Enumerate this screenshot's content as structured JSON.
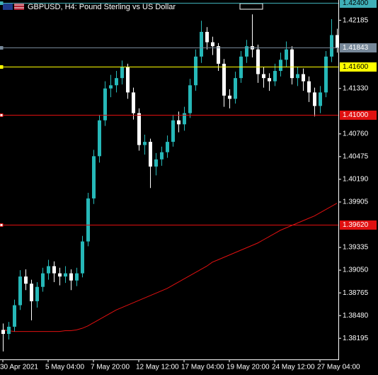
{
  "chart_data": {
    "type": "candlestick",
    "title": "GBPUSD, H4:  Pound Sterling vs US Dollar",
    "categories": [
      "30 Apr 2021",
      null,
      null,
      null,
      null,
      null,
      null,
      null,
      "5 May 04:00",
      null,
      null,
      null,
      null,
      null,
      null,
      null,
      "7 May 20:00",
      null,
      null,
      null,
      null,
      null,
      null,
      null,
      "12 May 12:00",
      null,
      null,
      null,
      null,
      null,
      null,
      null,
      "17 May 04:00",
      null,
      null,
      null,
      null,
      null,
      null,
      null,
      "19 May 20:00",
      null,
      null,
      null,
      null,
      null,
      null,
      null,
      "24 May 12:00",
      null,
      null,
      null,
      null,
      null,
      null,
      null,
      "27 May 04:00",
      null,
      null,
      null
    ],
    "open": [
      1.383,
      1.3825,
      1.3834,
      1.3861,
      1.3897,
      1.3888,
      1.3866,
      1.3884,
      1.3901,
      1.391,
      1.3901,
      1.3897,
      1.3901,
      1.3892,
      1.3901,
      1.3941,
      1.3995,
      1.4048,
      1.4093,
      1.4133,
      1.4137,
      1.4146,
      1.416,
      1.4128,
      1.4102,
      1.4062,
      1.4066,
      1.4035,
      1.4044,
      1.4053,
      1.4066,
      1.4093,
      1.4088,
      1.4102,
      1.4137,
      1.4173,
      1.4204,
      1.4191,
      1.4186,
      1.4164,
      1.4124,
      1.412,
      1.4146,
      1.4173,
      1.4186,
      1.4182,
      1.4151,
      1.4146,
      1.4142,
      1.4155,
      1.4169,
      1.4182,
      1.4146,
      1.4151,
      1.4142,
      1.4128,
      1.4111,
      1.4128,
      1.4173,
      1.42
    ],
    "high": [
      1.3838,
      1.384,
      1.3868,
      1.3905,
      1.3906,
      1.3893,
      1.389,
      1.3908,
      1.3918,
      1.3916,
      1.3908,
      1.391,
      1.3906,
      1.3908,
      1.3948,
      1.4002,
      1.4056,
      1.41,
      1.4142,
      1.415,
      1.4155,
      1.4168,
      1.4164,
      1.4134,
      1.4108,
      1.4075,
      1.407,
      1.4052,
      1.406,
      1.4074,
      1.41,
      1.4104,
      1.411,
      1.4145,
      1.4182,
      1.4218,
      1.421,
      1.4198,
      1.419,
      1.417,
      1.4132,
      1.4154,
      1.418,
      1.4194,
      1.4226,
      1.4188,
      1.416,
      1.4152,
      1.4164,
      1.4178,
      1.4192,
      1.4186,
      1.416,
      1.4158,
      1.4148,
      1.4134,
      1.4136,
      1.418,
      1.422,
      1.4208
    ],
    "low": [
      1.3803,
      1.3818,
      1.3828,
      1.3855,
      1.388,
      1.3842,
      1.3858,
      1.3878,
      1.3893,
      1.389,
      1.3886,
      1.3889,
      1.388,
      1.3885,
      1.3896,
      1.3935,
      1.3988,
      1.404,
      1.4086,
      1.4122,
      1.4128,
      1.4138,
      1.412,
      1.4094,
      1.4055,
      1.405,
      1.4008,
      1.4024,
      1.4036,
      1.4046,
      1.406,
      1.4078,
      1.408,
      1.4096,
      1.413,
      1.4165,
      1.4182,
      1.4175,
      1.4155,
      1.411,
      1.4108,
      1.4114,
      1.414,
      1.4165,
      1.4172,
      1.414,
      1.4134,
      1.413,
      1.4136,
      1.4148,
      1.416,
      1.4138,
      1.4136,
      1.413,
      1.4116,
      1.4098,
      1.4102,
      1.4122,
      1.4166,
      1.4178
    ],
    "close": [
      1.3825,
      1.3834,
      1.3861,
      1.3897,
      1.3888,
      1.3866,
      1.3884,
      1.3901,
      1.391,
      1.3901,
      1.3897,
      1.3901,
      1.3892,
      1.3901,
      1.3941,
      1.3995,
      1.4048,
      1.4093,
      1.4133,
      1.4137,
      1.4146,
      1.416,
      1.4128,
      1.4102,
      1.4062,
      1.4066,
      1.4035,
      1.4044,
      1.4053,
      1.4066,
      1.4093,
      1.4088,
      1.4102,
      1.4137,
      1.4173,
      1.4204,
      1.4191,
      1.4186,
      1.4164,
      1.4124,
      1.412,
      1.4146,
      1.4173,
      1.4186,
      1.4182,
      1.4151,
      1.4146,
      1.4142,
      1.4155,
      1.4169,
      1.4182,
      1.4146,
      1.4151,
      1.4142,
      1.4128,
      1.4111,
      1.4128,
      1.4173,
      1.42,
      1.41843
    ],
    "ma": [
      1.383,
      1.3829,
      1.3828,
      1.3828,
      1.3828,
      1.3828,
      1.3828,
      1.3828,
      1.3828,
      1.3828,
      1.3828,
      1.3829,
      1.3829,
      1.383,
      1.3832,
      1.3835,
      1.3839,
      1.3843,
      1.3847,
      1.3851,
      1.3855,
      1.3858,
      1.3861,
      1.3864,
      1.3867,
      1.387,
      1.3873,
      1.3876,
      1.3879,
      1.3882,
      1.3886,
      1.389,
      1.3894,
      1.3898,
      1.3902,
      1.3906,
      1.391,
      1.3915,
      1.3918,
      1.3921,
      1.3924,
      1.3927,
      1.393,
      1.3933,
      1.3936,
      1.3939,
      1.3943,
      1.3947,
      1.3951,
      1.3955,
      1.3958,
      1.3961,
      1.3964,
      1.3967,
      1.397,
      1.3973,
      1.3977,
      1.3981,
      1.3985,
      1.3989
    ],
    "up_color": "#26b8b8",
    "down_color": "#ffffff",
    "ma_color": "#e01010",
    "ylim": [
      1.3793,
      1.4244
    ],
    "yticks": [
      1.42185,
      {
        "value": 1.4133,
        "label": "1.41330"
      },
      {
        "value": 1.4076,
        "label": "1.40760"
      },
      1.40475,
      {
        "value": 1.4019,
        "label": "1.40190"
      },
      1.39905,
      1.39335,
      {
        "value": 1.3905,
        "label": "1.39050"
      },
      1.38765,
      {
        "value": 1.3848,
        "label": "1.38480"
      },
      1.38195
    ],
    "levels": [
      {
        "value": 1.424,
        "label": "1.42400",
        "color": "#3fb0b8"
      },
      {
        "value": 1.41843,
        "label": "1.41843",
        "color": "#778899"
      },
      {
        "value": 1.416,
        "label": "1.41600",
        "color": "#ffff00"
      },
      {
        "value": 1.41,
        "label": "1.41000",
        "color": "#e01010"
      },
      {
        "value": 1.3962,
        "label": "1.39620",
        "color": "#e01010"
      }
    ]
  }
}
